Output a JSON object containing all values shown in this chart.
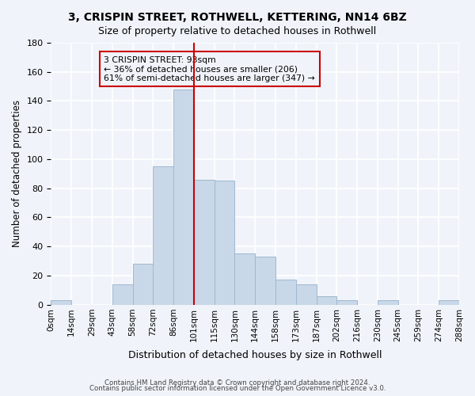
{
  "title": "3, CRISPIN STREET, ROTHWELL, KETTERING, NN14 6BZ",
  "subtitle": "Size of property relative to detached houses in Rothwell",
  "xlabel": "Distribution of detached houses by size in Rothwell",
  "ylabel": "Number of detached properties",
  "bar_color": "#c8d8e8",
  "bar_edgecolor": "#a0b8d0",
  "background_color": "#f0f4fa",
  "grid_color": "#ffffff",
  "tick_labels": [
    "0sqm",
    "14sqm",
    "29sqm",
    "43sqm",
    "58sqm",
    "72sqm",
    "86sqm",
    "101sqm",
    "115sqm",
    "130sqm",
    "144sqm",
    "158sqm",
    "173sqm",
    "187sqm",
    "202sqm",
    "216sqm",
    "230sqm",
    "245sqm",
    "259sqm",
    "274sqm",
    "288sqm"
  ],
  "bar_values": [
    3,
    0,
    0,
    14,
    28,
    95,
    148,
    86,
    85,
    35,
    33,
    17,
    14,
    6,
    3,
    0,
    3,
    0,
    0,
    3
  ],
  "vline_color": "#cc0000",
  "vline_position": 6.5,
  "annotation_text": "3 CRISPIN STREET: 93sqm\n← 36% of detached houses are smaller (206)\n61% of semi-detached houses are larger (347) →",
  "annotation_box_edgecolor": "#cc0000",
  "ylim": [
    0,
    180
  ],
  "yticks": [
    0,
    20,
    40,
    60,
    80,
    100,
    120,
    140,
    160,
    180
  ],
  "footer_line1": "Contains HM Land Registry data © Crown copyright and database right 2024.",
  "footer_line2": "Contains public sector information licensed under the Open Government Licence v3.0."
}
